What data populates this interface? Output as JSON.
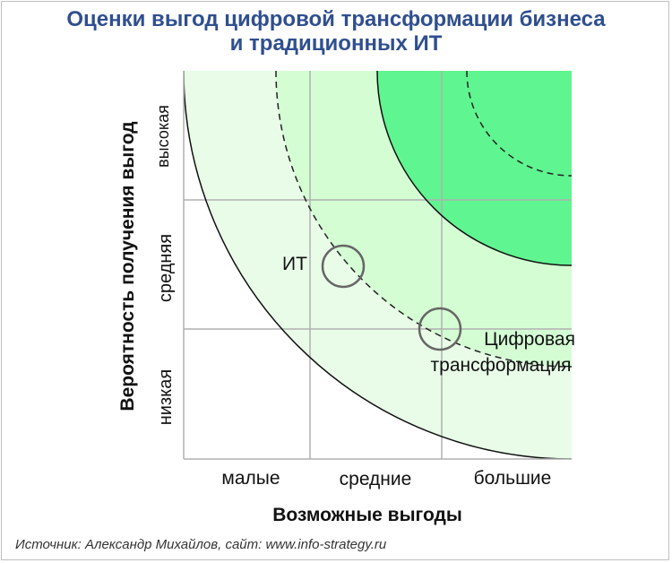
{
  "title": {
    "line1": "Оценки выгод цифровой трансформации бизнеса",
    "line2": "и традиционных ИТ"
  },
  "axes": {
    "x_label": "Возможные выгоды",
    "y_label": "Вероятность получения выгод",
    "x_ticks": [
      "малые",
      "средние",
      "большие"
    ],
    "y_ticks": [
      "низкая",
      "средняя",
      "высокая"
    ]
  },
  "markers": [
    {
      "label": "ИТ",
      "value": {
        "x": 1.25,
        "y": 1.45
      }
    },
    {
      "label_line1": "Цифровая",
      "label_line2": "трансформация",
      "value": {
        "x": 2.0,
        "y": 0.98
      }
    }
  ],
  "zones": {
    "colors": [
      "#e8fce8",
      "#d4fdd4",
      "#5ff590"
    ],
    "grid_color": "#b0b0b0",
    "dashed_color": "#222222"
  },
  "source": "Источник: Александр Михайлов, сайт: www.info-strategy.ru"
}
